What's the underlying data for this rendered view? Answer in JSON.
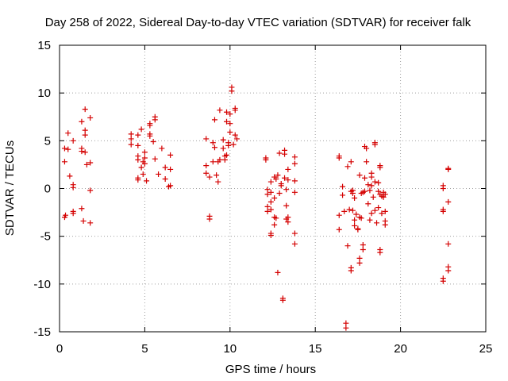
{
  "chart_data": {
    "type": "scatter",
    "title": "Day 258 of 2022, Sidereal Day-to-day VTEC variation (SDTVAR) for receiver falk",
    "xlabel": "GPS time / hours",
    "ylabel": "SDTVAR / TECUs",
    "xlim": [
      0,
      25
    ],
    "ylim": [
      -15,
      15
    ],
    "xticks": [
      0,
      5,
      10,
      15,
      20,
      25
    ],
    "yticks": [
      -15,
      -10,
      -5,
      0,
      5,
      10,
      15
    ],
    "xtick_labels": [
      "0",
      "5",
      "10",
      "15",
      "20",
      "25"
    ],
    "ytick_labels": [
      "-15",
      "-10",
      "-5",
      "0",
      "5",
      "10",
      "15"
    ],
    "grid": true,
    "marker": "+",
    "color": "#d40000",
    "series": [
      {
        "name": "SDTVAR",
        "points": [
          [
            0.3,
            4.2
          ],
          [
            0.3,
            2.8
          ],
          [
            0.35,
            -2.8
          ],
          [
            0.3,
            -3.0
          ],
          [
            0.5,
            5.8
          ],
          [
            0.5,
            4.1
          ],
          [
            0.6,
            1.3
          ],
          [
            0.8,
            5.0
          ],
          [
            0.8,
            0.4
          ],
          [
            0.8,
            0.1
          ],
          [
            0.8,
            -2.4
          ],
          [
            0.8,
            -2.6
          ],
          [
            1.3,
            7.0
          ],
          [
            1.3,
            4.2
          ],
          [
            1.3,
            3.9
          ],
          [
            1.3,
            -2.1
          ],
          [
            1.4,
            -3.4
          ],
          [
            1.5,
            8.3
          ],
          [
            1.5,
            6.1
          ],
          [
            1.5,
            5.6
          ],
          [
            1.5,
            3.8
          ],
          [
            1.6,
            2.5
          ],
          [
            1.8,
            7.4
          ],
          [
            1.8,
            2.7
          ],
          [
            1.8,
            -0.2
          ],
          [
            1.8,
            -3.6
          ],
          [
            4.2,
            5.7
          ],
          [
            4.2,
            5.2
          ],
          [
            4.2,
            4.6
          ],
          [
            4.6,
            5.6
          ],
          [
            4.6,
            4.5
          ],
          [
            4.6,
            3.4
          ],
          [
            4.6,
            3.0
          ],
          [
            4.6,
            1.1
          ],
          [
            4.6,
            0.9
          ],
          [
            4.8,
            6.2
          ],
          [
            4.8,
            2.2
          ],
          [
            4.9,
            2.8
          ],
          [
            4.9,
            1.5
          ],
          [
            5.0,
            3.8
          ],
          [
            5.0,
            3.2
          ],
          [
            5.0,
            2.6
          ],
          [
            5.1,
            0.8
          ],
          [
            5.3,
            6.8
          ],
          [
            5.3,
            6.6
          ],
          [
            5.3,
            5.7
          ],
          [
            5.3,
            5.5
          ],
          [
            5.5,
            4.9
          ],
          [
            5.6,
            7.2
          ],
          [
            5.6,
            7.5
          ],
          [
            5.6,
            3.1
          ],
          [
            5.8,
            1.5
          ],
          [
            6.0,
            4.2
          ],
          [
            6.2,
            2.2
          ],
          [
            6.2,
            1.0
          ],
          [
            6.4,
            0.2
          ],
          [
            6.5,
            3.5
          ],
          [
            6.5,
            2.0
          ],
          [
            6.5,
            0.3
          ],
          [
            8.6,
            5.2
          ],
          [
            8.6,
            2.4
          ],
          [
            8.6,
            1.6
          ],
          [
            8.8,
            1.2
          ],
          [
            8.8,
            -2.9
          ],
          [
            8.8,
            -3.2
          ],
          [
            9.0,
            4.8
          ],
          [
            9.0,
            2.8
          ],
          [
            9.1,
            7.2
          ],
          [
            9.1,
            4.3
          ],
          [
            9.2,
            1.4
          ],
          [
            9.3,
            2.8
          ],
          [
            9.3,
            0.7
          ],
          [
            9.4,
            8.2
          ],
          [
            9.4,
            3.0
          ],
          [
            9.6,
            5.1
          ],
          [
            9.6,
            4.2
          ],
          [
            9.7,
            3.4
          ],
          [
            9.7,
            3.0
          ],
          [
            9.8,
            8.0
          ],
          [
            9.8,
            7.0
          ],
          [
            9.8,
            3.5
          ],
          [
            9.9,
            4.8
          ],
          [
            9.9,
            4.5
          ],
          [
            10.0,
            6.8
          ],
          [
            10.0,
            5.9
          ],
          [
            10.0,
            7.8
          ],
          [
            10.1,
            10.6
          ],
          [
            10.1,
            10.2
          ],
          [
            10.2,
            4.6
          ],
          [
            10.3,
            5.6
          ],
          [
            10.3,
            8.4
          ],
          [
            10.3,
            8.2
          ],
          [
            10.4,
            5.2
          ],
          [
            12.1,
            3.2
          ],
          [
            12.1,
            3.0
          ],
          [
            12.2,
            -0.1
          ],
          [
            12.2,
            -0.6
          ],
          [
            12.2,
            -1.9
          ],
          [
            12.2,
            -2.4
          ],
          [
            12.4,
            0.7
          ],
          [
            12.4,
            -0.4
          ],
          [
            12.4,
            -1.4
          ],
          [
            12.4,
            -2.2
          ],
          [
            12.4,
            -4.7
          ],
          [
            12.4,
            -4.9
          ],
          [
            12.6,
            1.2
          ],
          [
            12.6,
            -1.0
          ],
          [
            12.6,
            -3.0
          ],
          [
            12.6,
            -3.8
          ],
          [
            12.7,
            1.0
          ],
          [
            12.7,
            -3.1
          ],
          [
            12.8,
            1.4
          ],
          [
            12.8,
            -8.8
          ],
          [
            12.9,
            3.7
          ],
          [
            12.9,
            -0.5
          ],
          [
            13.0,
            0.5
          ],
          [
            13.0,
            0.3
          ],
          [
            13.1,
            -11.5
          ],
          [
            13.1,
            -11.7
          ],
          [
            13.2,
            4.0
          ],
          [
            13.2,
            3.6
          ],
          [
            13.2,
            1.1
          ],
          [
            13.3,
            -0.1
          ],
          [
            13.3,
            -1.8
          ],
          [
            13.3,
            -3.2
          ],
          [
            13.4,
            2.0
          ],
          [
            13.4,
            0.9
          ],
          [
            13.4,
            -3.0
          ],
          [
            13.4,
            -3.5
          ],
          [
            13.8,
            3.3
          ],
          [
            13.8,
            2.6
          ],
          [
            13.8,
            0.8
          ],
          [
            13.8,
            -0.4
          ],
          [
            13.8,
            -4.7
          ],
          [
            13.8,
            -5.8
          ],
          [
            16.4,
            3.4
          ],
          [
            16.4,
            3.2
          ],
          [
            16.4,
            -2.8
          ],
          [
            16.4,
            -4.3
          ],
          [
            16.6,
            0.2
          ],
          [
            16.6,
            -0.7
          ],
          [
            16.7,
            -2.4
          ],
          [
            16.8,
            -14.1
          ],
          [
            16.8,
            -14.6
          ],
          [
            16.9,
            2.3
          ],
          [
            16.9,
            -6.0
          ],
          [
            17.0,
            -2.2
          ],
          [
            17.1,
            2.8
          ],
          [
            17.1,
            -0.3
          ],
          [
            17.1,
            -8.3
          ],
          [
            17.1,
            -8.6
          ],
          [
            17.2,
            -0.2
          ],
          [
            17.2,
            -0.5
          ],
          [
            17.2,
            -2.3
          ],
          [
            17.3,
            -1.0
          ],
          [
            17.3,
            -3.3
          ],
          [
            17.3,
            -3.9
          ],
          [
            17.4,
            -2.7
          ],
          [
            17.5,
            -4.2
          ],
          [
            17.5,
            -4.3
          ],
          [
            17.6,
            1.4
          ],
          [
            17.6,
            -3.0
          ],
          [
            17.6,
            -7.3
          ],
          [
            17.6,
            -7.8
          ],
          [
            17.7,
            -0.5
          ],
          [
            17.7,
            -3.1
          ],
          [
            17.8,
            -5.9
          ],
          [
            17.8,
            -6.4
          ],
          [
            17.8,
            -0.4
          ],
          [
            17.9,
            1.1
          ],
          [
            17.9,
            4.4
          ],
          [
            17.9,
            -0.3
          ],
          [
            18.0,
            4.2
          ],
          [
            18.0,
            2.8
          ],
          [
            18.1,
            0.4
          ],
          [
            18.1,
            -1.6
          ],
          [
            18.2,
            -0.2
          ],
          [
            18.2,
            -3.3
          ],
          [
            18.3,
            1.6
          ],
          [
            18.3,
            1.2
          ],
          [
            18.3,
            0.3
          ],
          [
            18.3,
            -2.6
          ],
          [
            18.4,
            -0.9
          ],
          [
            18.5,
            4.6
          ],
          [
            18.5,
            4.8
          ],
          [
            18.5,
            0.7
          ],
          [
            18.5,
            -2.3
          ],
          [
            18.6,
            -3.6
          ],
          [
            18.7,
            0.6
          ],
          [
            18.7,
            -0.3
          ],
          [
            18.7,
            -2.0
          ],
          [
            18.8,
            2.4
          ],
          [
            18.8,
            2.2
          ],
          [
            18.8,
            -0.6
          ],
          [
            18.8,
            -6.4
          ],
          [
            18.8,
            -6.7
          ],
          [
            18.9,
            -0.8
          ],
          [
            18.9,
            -2.6
          ],
          [
            19.0,
            -0.4
          ],
          [
            19.0,
            -0.9
          ],
          [
            19.1,
            -0.6
          ],
          [
            19.1,
            -3.4
          ],
          [
            19.1,
            -3.8
          ],
          [
            19.1,
            -2.4
          ],
          [
            22.5,
            0.3
          ],
          [
            22.5,
            0.0
          ],
          [
            22.5,
            -2.2
          ],
          [
            22.5,
            -2.4
          ],
          [
            22.5,
            -9.4
          ],
          [
            22.5,
            -9.7
          ],
          [
            22.8,
            2.1
          ],
          [
            22.8,
            2.0
          ],
          [
            22.8,
            -1.4
          ],
          [
            22.8,
            -5.8
          ],
          [
            22.8,
            -8.2
          ],
          [
            22.8,
            -8.6
          ]
        ]
      }
    ]
  }
}
